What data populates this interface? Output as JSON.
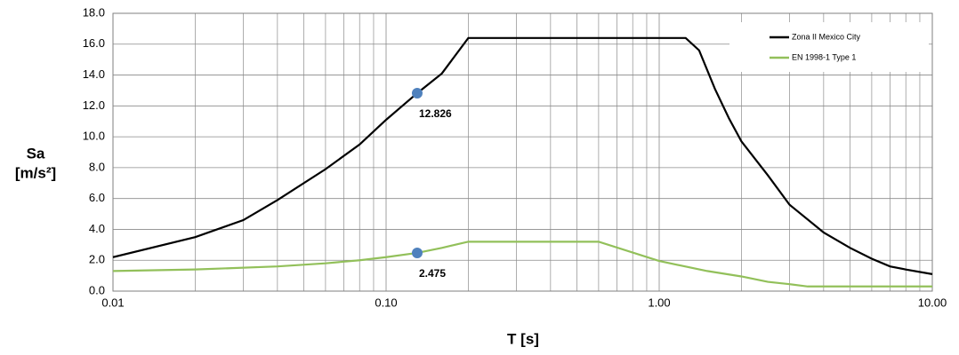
{
  "chart_data": {
    "type": "line",
    "xlabel": "T  [s]",
    "ylabel": [
      "Sa",
      "[m/s²]"
    ],
    "xscale": "log",
    "grid": true,
    "minor_grid": true,
    "legend": "upper right",
    "xlim": [
      0.01,
      10
    ],
    "ylim": [
      0,
      18
    ],
    "xticks": [
      0.01,
      {
        "value": 0.1,
        "label": "0.10"
      },
      {
        "value": 1,
        "label": "1.00"
      },
      {
        "value": 10,
        "label": "10.00"
      }
    ],
    "yticks": [
      {
        "value": 0,
        "label": "0.0"
      },
      {
        "value": 2,
        "label": "2.0"
      },
      {
        "value": 4,
        "label": "4.0"
      },
      {
        "value": 6,
        "label": "6.0"
      },
      {
        "value": 8,
        "label": "8.0"
      },
      {
        "value": 10,
        "label": "10.0"
      },
      {
        "value": 12,
        "label": "12.0"
      },
      {
        "value": 14,
        "label": "14.0"
      },
      {
        "value": 16,
        "label": "16.0"
      },
      {
        "value": 18,
        "label": "18.0"
      }
    ],
    "series": [
      {
        "name": "Zona II Mexico City",
        "color": "#000000",
        "x": [
          0.01,
          0.02,
          0.03,
          0.04,
          0.06,
          0.08,
          0.1,
          0.13,
          0.16,
          0.2,
          1.25,
          1.4,
          1.6,
          1.8,
          2,
          2.5,
          3,
          4,
          5,
          6,
          7,
          8,
          10
        ],
        "values": [
          2.2,
          3.5,
          4.6,
          5.9,
          7.9,
          9.5,
          11.1,
          12.826,
          14.1,
          16.4,
          16.4,
          15.6,
          13.1,
          11.2,
          9.7,
          7.5,
          5.6,
          3.8,
          2.8,
          2.1,
          1.6,
          1.4,
          1.1
        ]
      },
      {
        "name": "EN 1998-1 Type 1",
        "color": "#92c05a",
        "x": [
          0.01,
          0.02,
          0.04,
          0.06,
          0.08,
          0.1,
          0.13,
          0.16,
          0.2,
          0.6,
          1,
          1.5,
          2,
          2.5,
          3,
          3.5,
          10
        ],
        "values": [
          1.3,
          1.4,
          1.6,
          1.8,
          2.0,
          2.2,
          2.475,
          2.8,
          3.2,
          3.2,
          1.95,
          1.3,
          0.95,
          0.6,
          0.45,
          0.3,
          0.3
        ]
      }
    ],
    "annotations": [
      {
        "x": 0.13,
        "y": 12.826,
        "color": "#4f81bd"
      },
      {
        "x": 0.13,
        "y": 2.475,
        "color": "#4f81bd"
      }
    ]
  }
}
